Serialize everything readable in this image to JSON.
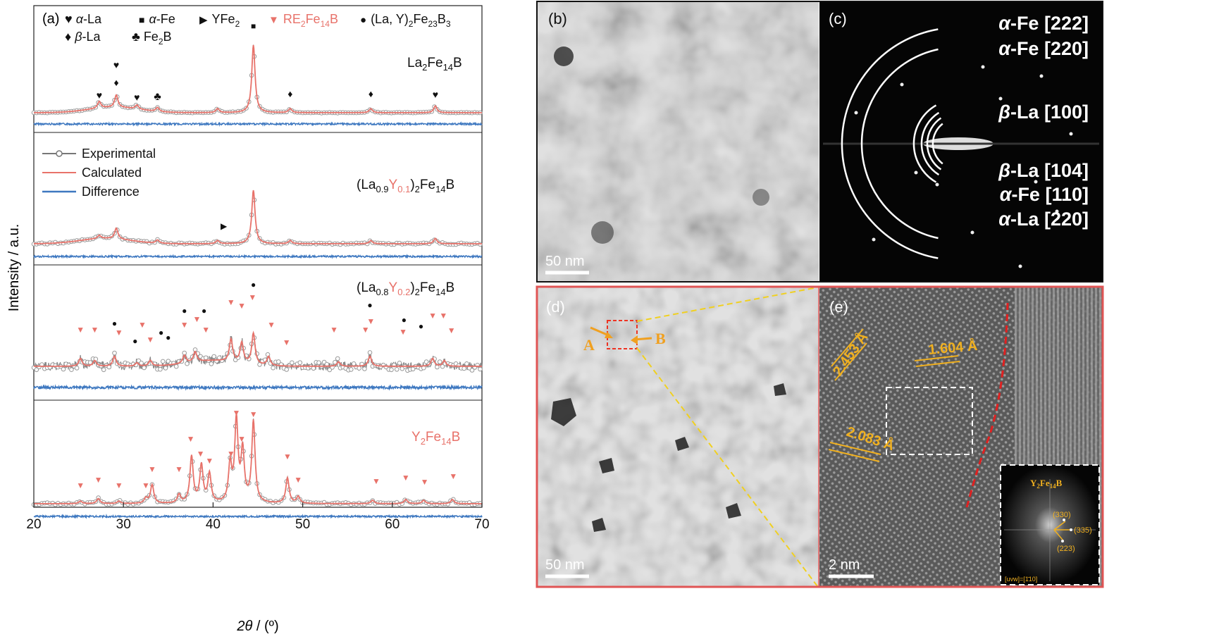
{
  "panel_a": {
    "label": "(a)",
    "legend_markers": [
      {
        "symbol": "♥",
        "prefix": "",
        "italic": "α",
        "suffix": "-La"
      },
      {
        "symbol": "■",
        "prefix": "",
        "italic": "α",
        "suffix": "-Fe"
      },
      {
        "symbol": "▶",
        "prefix": "YFe",
        "sub": "2",
        "suffix": ""
      },
      {
        "symbol": "▼",
        "prefix": "RE",
        "sub": "2",
        "mid": "Fe",
        "sub2": "14",
        "suffix": "B"
      },
      {
        "symbol": "●",
        "prefix": "(La, Y)",
        "sub": "2",
        "mid": "Fe",
        "sub2": "23",
        "mid2": "B",
        "sub3": "3"
      },
      {
        "symbol": "♦",
        "prefix": "",
        "italic": "β",
        "suffix": "-La"
      },
      {
        "symbol": "♣",
        "prefix": "Fe",
        "sub": "2",
        "suffix": "B"
      }
    ],
    "legend_lines": [
      "Experimental",
      "Calculated",
      "Difference"
    ],
    "sample_labels": {
      "s1": {
        "a": "La",
        "s": "2",
        "b": "Fe",
        "s2": "14",
        "c": "B"
      },
      "s2": {
        "a": "(La",
        "s0": "0.9",
        "y": "Y",
        "s1": "0.1",
        "b": ")",
        "s2": "2",
        "c": "Fe",
        "s3": "14",
        "d": "B"
      },
      "s3": {
        "a": "(La",
        "s0": "0.8",
        "y": "Y",
        "s1": "0.2",
        "b": ")",
        "s2": "2",
        "c": "Fe",
        "s3": "14",
        "d": "B"
      },
      "s4": {
        "a": "Y",
        "s": "2",
        "b": "Fe",
        "s2": "14",
        "c": "B"
      }
    },
    "ylabel": "Intensity / a.u.",
    "xlabel_theta": "2θ",
    "xlabel_unit": " / (º)",
    "colors": {
      "calc": "#e8726a",
      "diff": "#3e78c0",
      "exp": "#888888",
      "re": "#e8726a"
    }
  },
  "chart_data": {
    "type": "line",
    "xlim": [
      20,
      70
    ],
    "xticks": [
      "20",
      "30",
      "40",
      "50",
      "60",
      "70"
    ],
    "stacked_panels": [
      {
        "name": "La2Fe14B",
        "peaks_2theta": [
          27.3,
          29.2,
          31.5,
          33.8,
          40.5,
          44.5,
          48.6,
          57.6,
          64.8
        ]
      },
      {
        "name": "(La0.9Y0.1)2Fe14B",
        "peaks_2theta": [
          27.3,
          29.2,
          33.8,
          40.5,
          44.5,
          48.6,
          57.6,
          64.8
        ]
      },
      {
        "name": "(La0.8Y0.2)2Fe14B",
        "peaks_2theta": [
          25.2,
          26.8,
          29.0,
          31.5,
          33.0,
          35.0,
          36.8,
          38.0,
          40.5,
          42.0,
          43.2,
          44.5,
          46.2,
          48.2,
          54.0,
          57.5,
          61.5,
          64.5,
          65.8
        ]
      },
      {
        "name": "Y2Fe14B",
        "peaks_2theta": [
          25.2,
          27.2,
          29.5,
          32.5,
          33.2,
          36.2,
          37.6,
          38.7,
          39.6,
          41.9,
          42.6,
          43.3,
          44.5,
          48.3,
          49.5,
          57.8,
          61.5,
          63.5,
          66.7
        ]
      }
    ]
  },
  "panel_b": {
    "label": "(b)",
    "scale": "50 nm"
  },
  "panel_c": {
    "label": "(c)",
    "rings": [
      {
        "g": "α",
        "rest": "-Fe [222]"
      },
      {
        "g": "α",
        "rest": "-Fe [220]"
      },
      {
        "g": "β",
        "rest": "-La [100]"
      },
      {
        "g": "β",
        "rest": "-La [104]"
      },
      {
        "g": "α",
        "rest": "-Fe [110]"
      },
      {
        "g": "α",
        "rest": "-La [220]"
      }
    ]
  },
  "panel_d": {
    "label": "(d)",
    "scale": "50 nm",
    "point_a": "A",
    "point_b": "B"
  },
  "panel_e": {
    "label": "(e)",
    "scale": "2 nm",
    "d_spacings": [
      "2.453 Å",
      "1.604 Å",
      "2.083 Å"
    ],
    "inset_title": "Y",
    "inset_title_sub": "2",
    "inset_title_mid": "Fe",
    "inset_title_sub2": "14",
    "inset_title_end": "B",
    "inset_spots": [
      "(330)",
      "(335)",
      "(223)"
    ],
    "inset_zone": "[uvw]=[1̄10]"
  }
}
